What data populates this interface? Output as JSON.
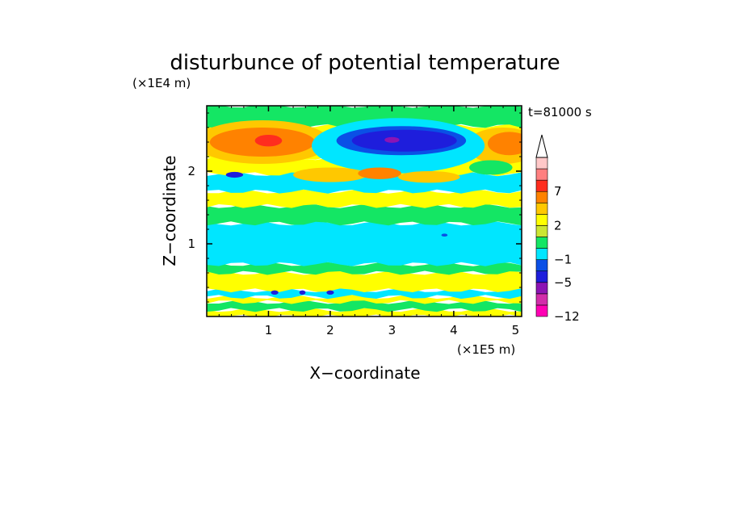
{
  "chart_data": {
    "type": "heatmap",
    "title": "disturbunce of potential temperature",
    "xlabel": "X−coordinate",
    "ylabel": "Z−coordinate",
    "x_unit": "(×1E5 m)",
    "y_unit": "(×1E4 m)",
    "time_label": "t=81000 s",
    "xlim": [
      0,
      5.1
    ],
    "ylim": [
      0,
      2.9
    ],
    "x_ticks": [
      {
        "v": 1,
        "t": "1"
      },
      {
        "v": 2,
        "t": "2"
      },
      {
        "v": 3,
        "t": "3"
      },
      {
        "v": 4,
        "t": "4"
      },
      {
        "v": 5,
        "t": "5"
      }
    ],
    "y_ticks": [
      {
        "v": 1,
        "t": "1"
      },
      {
        "v": 2,
        "t": "2"
      }
    ],
    "colorbar": {
      "levels": [
        -12,
        -9,
        -7,
        -5,
        -3,
        -1,
        0,
        1,
        2,
        3,
        5,
        7,
        9,
        11
      ],
      "colors": [
        "#ff00b4",
        "#d22daa",
        "#8c14b4",
        "#1e1edc",
        "#0a50e6",
        "#00e6ff",
        "#14e664",
        "#cce633",
        "#ffff00",
        "#ffc800",
        "#ff8200",
        "#ff2d1e",
        "#ff8080",
        "#ffc8c8"
      ],
      "labels": [
        {
          "v": -12,
          "t": "−12"
        },
        {
          "v": -5,
          "t": "−5"
        },
        {
          "v": -1,
          "t": "−1"
        },
        {
          "v": 2,
          "t": "2"
        },
        {
          "v": 7,
          "t": "7"
        }
      ]
    },
    "bands": [
      {
        "z0": 0,
        "z1": 0.09,
        "color": "#ffff00"
      },
      {
        "z0": 0.09,
        "z1": 0.2,
        "color": "#14e664"
      },
      {
        "z0": 0.2,
        "z1": 0.27,
        "color": "#ffff00"
      },
      {
        "z0": 0.27,
        "z1": 0.36,
        "color": "#00e6ff"
      },
      {
        "z0": 0.36,
        "z1": 0.6,
        "color": "#ffff00"
      },
      {
        "z0": 0.6,
        "z1": 0.72,
        "color": "#14e664"
      },
      {
        "z0": 0.72,
        "z1": 1.28,
        "color": "#00e6ff"
      },
      {
        "z0": 1.28,
        "z1": 1.52,
        "color": "#14e664"
      },
      {
        "z0": 1.52,
        "z1": 1.72,
        "color": "#ffff00"
      },
      {
        "z0": 1.72,
        "z1": 1.96,
        "color": "#00e6ff"
      },
      {
        "z0": 1.96,
        "z1": 2.18,
        "color": "#ffff00"
      },
      {
        "z0": 2.18,
        "z1": 2.62,
        "color": "#ffff00"
      },
      {
        "z0": 2.62,
        "z1": 2.9,
        "color": "#14e664"
      }
    ],
    "features": [
      {
        "cx": 0.9,
        "cz": 2.4,
        "rx": 1.1,
        "rz": 0.3,
        "color": "#ffc800"
      },
      {
        "cx": 0.9,
        "cz": 2.4,
        "rx": 0.85,
        "rz": 0.2,
        "color": "#ff8200"
      },
      {
        "cx": 1.0,
        "cz": 2.42,
        "rx": 0.22,
        "rz": 0.08,
        "color": "#ff2d1e"
      },
      {
        "cx": 4.8,
        "cz": 2.35,
        "rx": 0.6,
        "rz": 0.25,
        "color": "#ffc800"
      },
      {
        "cx": 4.9,
        "cz": 2.38,
        "rx": 0.35,
        "rz": 0.16,
        "color": "#ff8200"
      },
      {
        "cx": 3.1,
        "cz": 2.35,
        "rx": 1.4,
        "rz": 0.38,
        "color": "#00e6ff"
      },
      {
        "cx": 3.15,
        "cz": 2.42,
        "rx": 1.05,
        "rz": 0.2,
        "color": "#0a50e6"
      },
      {
        "cx": 3.2,
        "cz": 2.42,
        "rx": 0.85,
        "rz": 0.15,
        "color": "#1e1edc"
      },
      {
        "cx": 3.0,
        "cz": 2.43,
        "rx": 0.12,
        "rz": 0.04,
        "color": "#8c14b4"
      },
      {
        "cx": 0.45,
        "cz": 1.95,
        "rx": 0.14,
        "rz": 0.04,
        "color": "#1e1edc"
      },
      {
        "cx": 2.0,
        "cz": 1.95,
        "rx": 0.6,
        "rz": 0.1,
        "color": "#ffc800"
      },
      {
        "cx": 2.8,
        "cz": 1.97,
        "rx": 0.35,
        "rz": 0.08,
        "color": "#ff8200"
      },
      {
        "cx": 3.6,
        "cz": 1.92,
        "rx": 0.5,
        "rz": 0.08,
        "color": "#ffc800"
      },
      {
        "cx": 4.6,
        "cz": 2.05,
        "rx": 0.35,
        "rz": 0.1,
        "color": "#14e664"
      },
      {
        "cx": 3.85,
        "cz": 1.12,
        "rx": 0.05,
        "rz": 0.02,
        "color": "#0a50e6"
      },
      {
        "cx": 1.1,
        "cz": 0.33,
        "rx": 0.06,
        "rz": 0.03,
        "color": "#1e1edc"
      },
      {
        "cx": 1.55,
        "cz": 0.33,
        "rx": 0.05,
        "rz": 0.03,
        "color": "#1e1edc"
      },
      {
        "cx": 2.0,
        "cz": 0.33,
        "rx": 0.06,
        "rz": 0.03,
        "color": "#1e1edc"
      }
    ]
  }
}
